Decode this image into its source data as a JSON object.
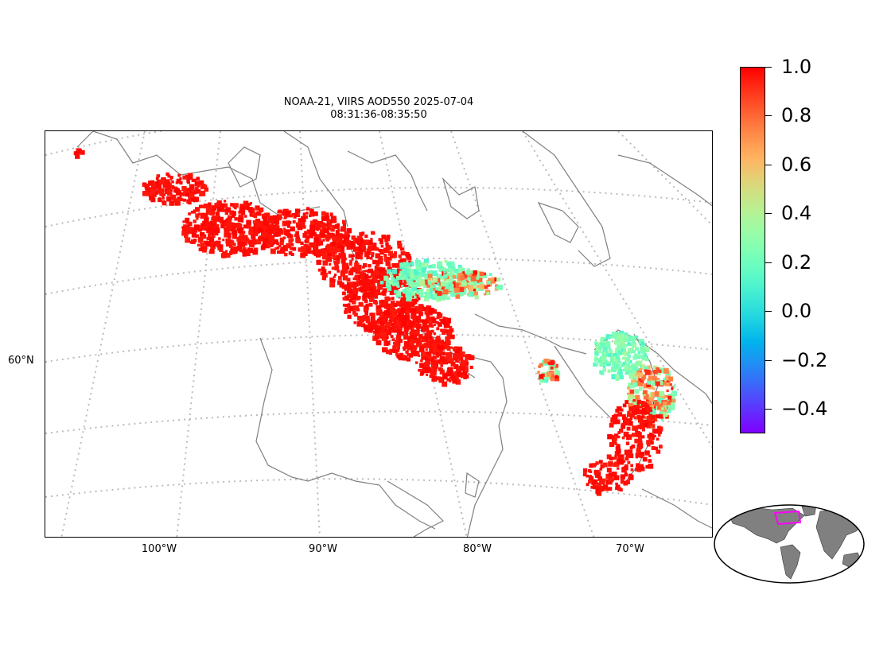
{
  "title": {
    "line1": "NOAA-21, VIIRS AOD550 2025-07-04",
    "line2": "08:31:36-08:35:50"
  },
  "map": {
    "lon_labels": [
      "100°W",
      "90°W",
      "80°W",
      "70°W"
    ],
    "lat_labels": [
      "60°N"
    ],
    "coastline_color": "#808080",
    "gridline_color": "#bbbbbb",
    "gridlines": true
  },
  "colorbar": {
    "colormap": "rainbow",
    "vmin": -0.5,
    "vmax": 1.0,
    "ticks": [
      1.0,
      0.8,
      0.6,
      0.4,
      0.2,
      0.0,
      -0.2,
      -0.4
    ],
    "tick_labels": [
      "1.0",
      "0.8",
      "0.6",
      "0.4",
      "0.2",
      "0.0",
      "−0.2",
      "−0.4"
    ]
  },
  "inset": {
    "land_color": "#808080",
    "ocean_color": "#ffffff",
    "highlight_color": "#ff00ff"
  }
}
